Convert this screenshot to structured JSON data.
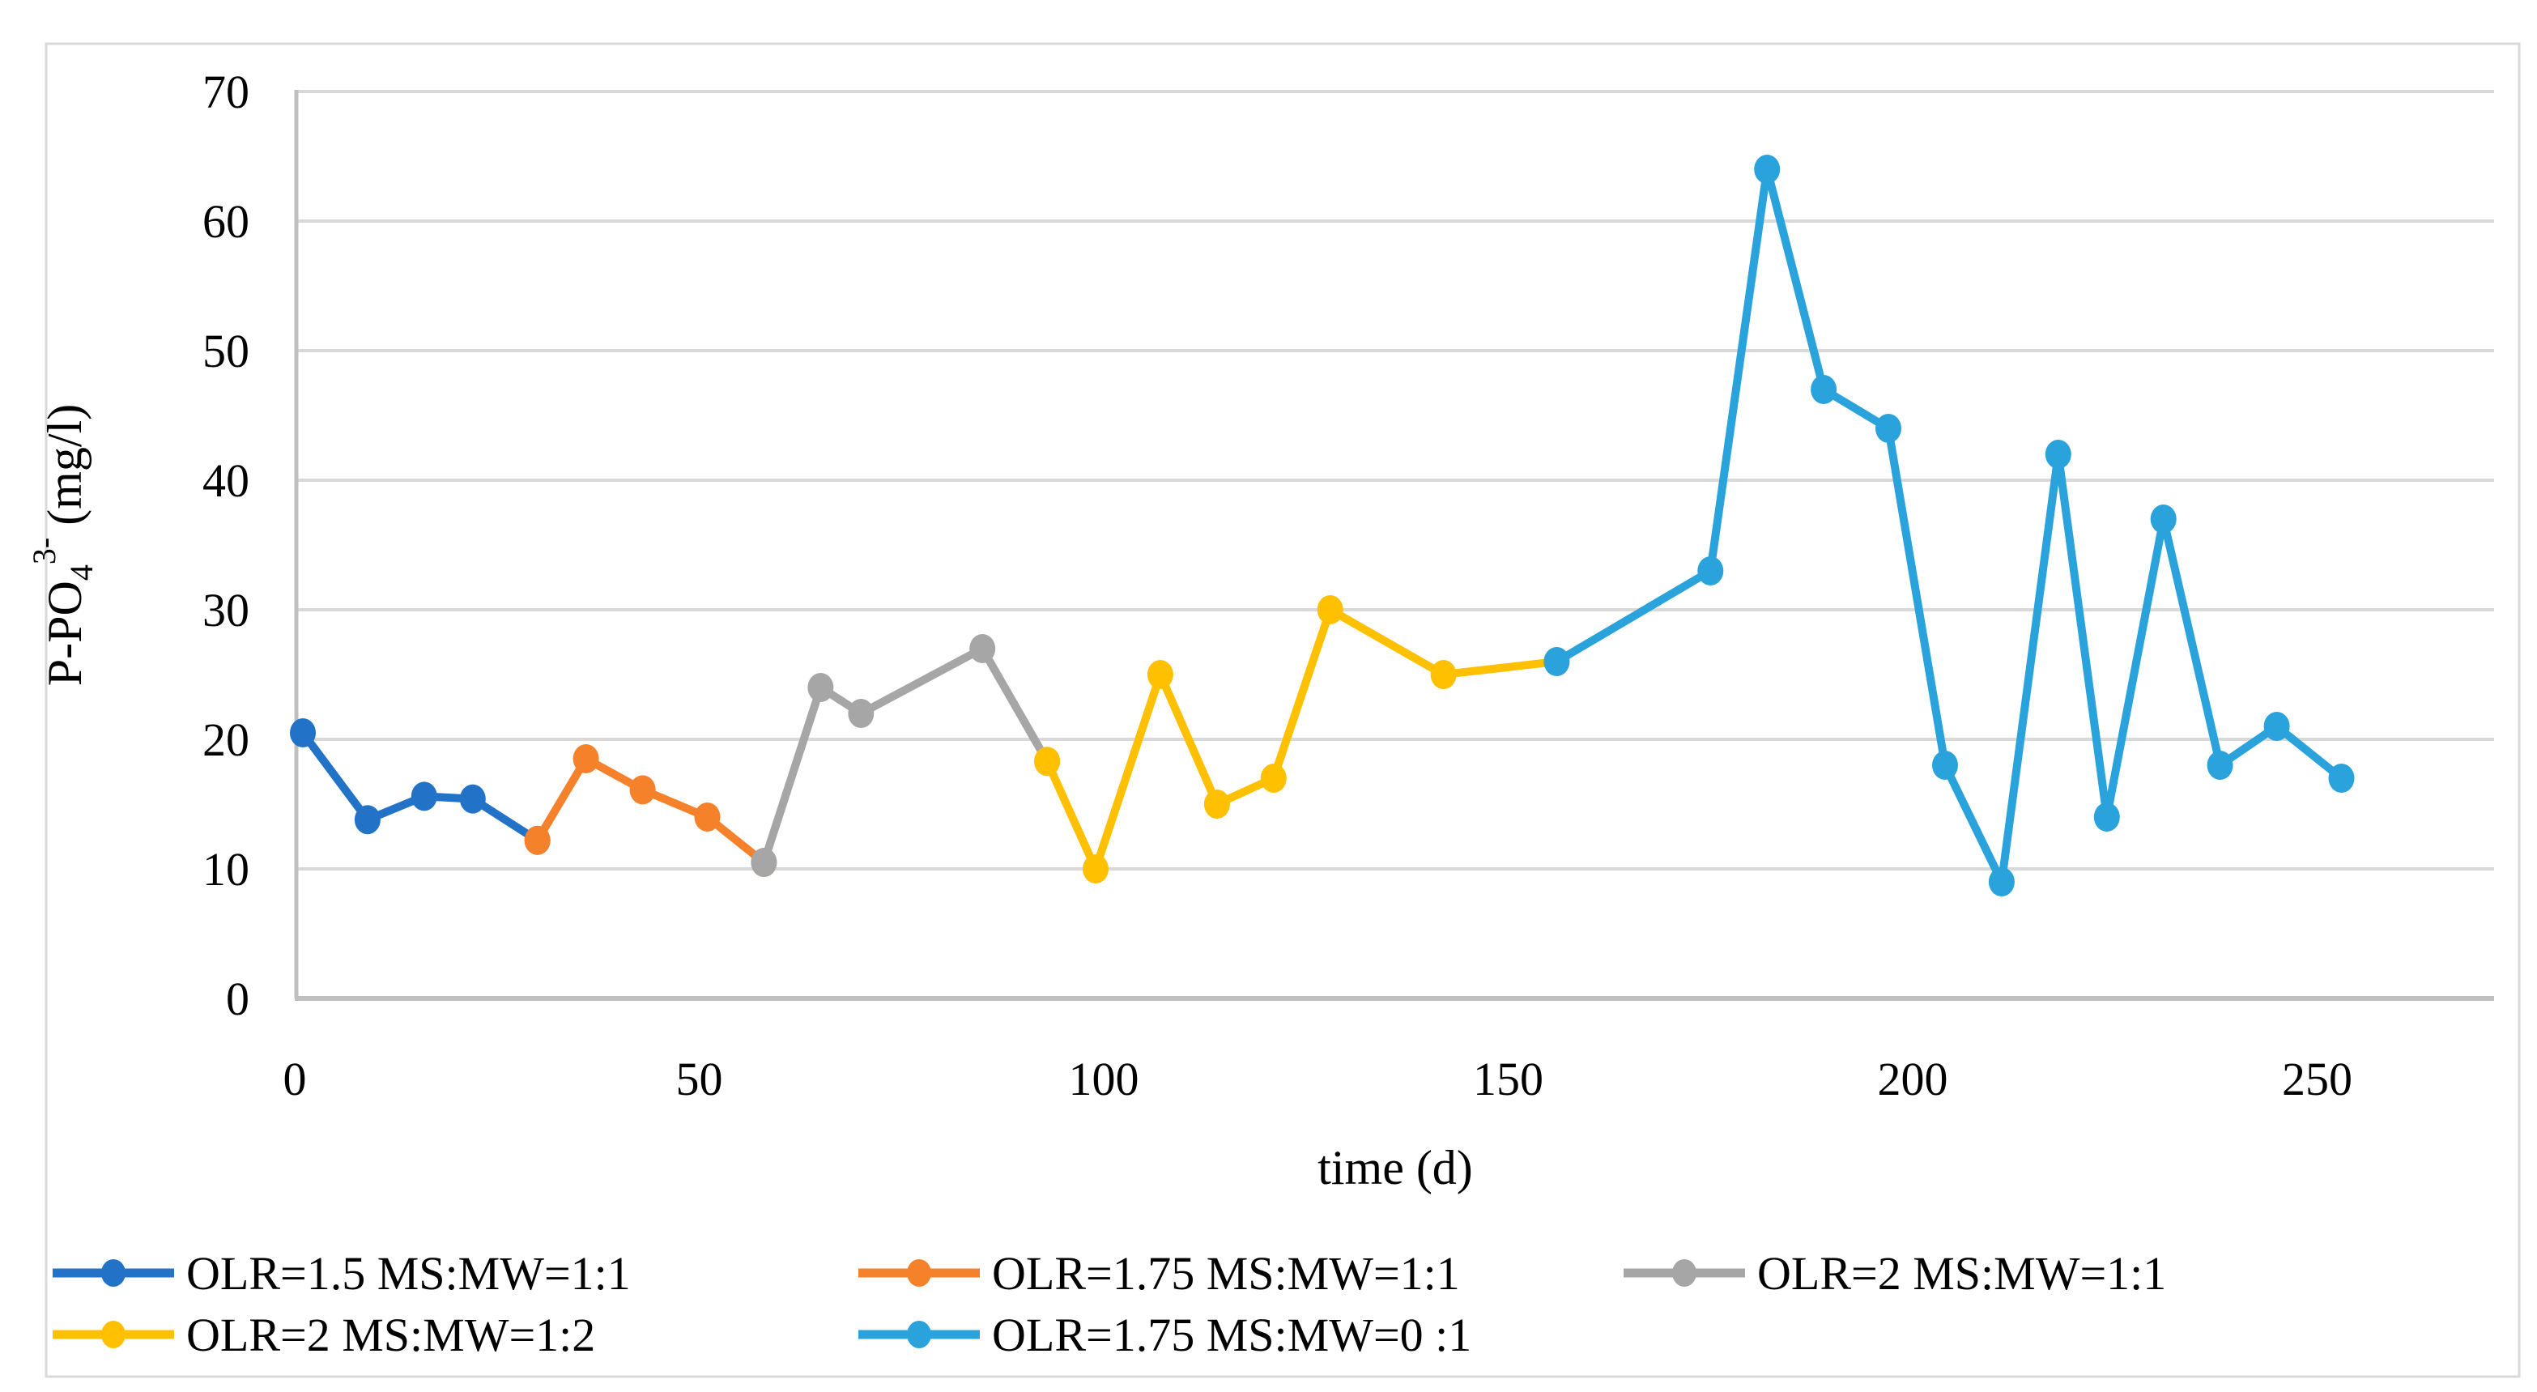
{
  "figure": {
    "background": "#FFFFFF",
    "border_color": "#D9D9D9",
    "axis_color": "#BFBFBF",
    "gridline_color": "#D9D9D9"
  },
  "chart_data": {
    "type": "line",
    "title": "",
    "xlabel": "time (d)",
    "ylabel": "P-PO43- (mg/l)",
    "ylabel_parts": {
      "base": "P-PO",
      "sub": "4",
      "sup": "3-",
      "rest": " (mg/l)"
    },
    "xlim": [
      0,
      272
    ],
    "ylim": [
      0,
      70
    ],
    "x_ticks": [
      0,
      50,
      100,
      150,
      200,
      250
    ],
    "y_ticks": [
      0,
      10,
      20,
      30,
      40,
      50,
      60,
      70
    ],
    "grid": {
      "horizontal": true,
      "vertical": false
    },
    "legend_position": "bottom",
    "legend_rows": [
      [
        0,
        1,
        2
      ],
      [
        3,
        4
      ]
    ],
    "series": [
      {
        "name": "OLR=1.5 MS:MW=1:1",
        "color": "#2273C8",
        "points": [
          [
            1,
            20.5
          ],
          [
            9,
            13.8
          ],
          [
            16,
            15.6
          ],
          [
            22,
            15.4
          ],
          [
            30,
            12.2
          ]
        ]
      },
      {
        "name": "OLR=1.75 MS:MW=1:1",
        "color": "#F5812B",
        "points": [
          [
            30,
            12.2
          ],
          [
            36,
            18.5
          ],
          [
            43,
            16.1
          ],
          [
            51,
            14
          ],
          [
            58,
            10.5
          ]
        ]
      },
      {
        "name": "OLR=2 MS:MW=1:1",
        "color": "#A6A6A6",
        "points": [
          [
            58,
            10.5
          ],
          [
            65,
            24
          ],
          [
            70,
            22
          ],
          [
            85,
            27
          ],
          [
            93,
            18.3
          ]
        ]
      },
      {
        "name": "OLR=2 MS:MW=1:2",
        "color": "#FFC000",
        "points": [
          [
            93,
            18.3
          ],
          [
            99,
            10
          ],
          [
            107,
            25
          ],
          [
            114,
            15
          ],
          [
            121,
            17
          ],
          [
            128,
            30
          ],
          [
            142,
            25
          ],
          [
            156,
            26
          ]
        ]
      },
      {
        "name": "OLR=1.75 MS:MW=0 :1",
        "color": "#2AA2DC",
        "points": [
          [
            156,
            26
          ],
          [
            175,
            33
          ],
          [
            182,
            64
          ],
          [
            189,
            47
          ],
          [
            197,
            44
          ],
          [
            204,
            18
          ],
          [
            211,
            9
          ],
          [
            218,
            42
          ],
          [
            224,
            14
          ],
          [
            231,
            37
          ],
          [
            238,
            18
          ],
          [
            245,
            21
          ],
          [
            253,
            17
          ]
        ]
      }
    ]
  }
}
